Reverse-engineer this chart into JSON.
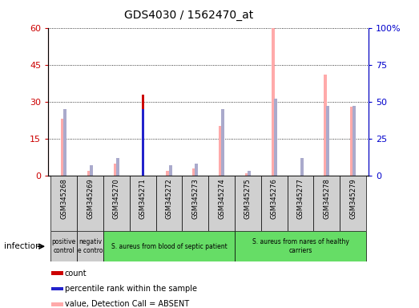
{
  "title": "GDS4030 / 1562470_at",
  "samples": [
    "GSM345268",
    "GSM345269",
    "GSM345270",
    "GSM345271",
    "GSM345272",
    "GSM345273",
    "GSM345274",
    "GSM345275",
    "GSM345276",
    "GSM345277",
    "GSM345278",
    "GSM345279"
  ],
  "count": [
    0,
    0,
    0,
    33,
    0,
    0,
    0,
    0,
    0,
    0,
    0,
    0
  ],
  "percentile_rank": [
    0,
    0,
    0,
    27,
    0,
    0,
    0,
    0,
    0,
    0,
    0,
    0
  ],
  "value_absent": [
    23,
    2,
    5,
    0,
    2,
    3,
    20,
    1,
    60,
    0,
    41,
    28
  ],
  "rank_absent_pct": [
    45,
    7,
    12,
    0,
    7,
    8,
    45,
    3,
    52,
    12,
    47,
    47
  ],
  "ylim_left": [
    0,
    60
  ],
  "ylim_right": [
    0,
    100
  ],
  "yticks_left": [
    0,
    15,
    30,
    45,
    60
  ],
  "yticks_right": [
    0,
    25,
    50,
    75,
    100
  ],
  "yticklabels_left": [
    "0",
    "15",
    "30",
    "45",
    "60"
  ],
  "yticklabels_right": [
    "0",
    "25",
    "50",
    "75",
    "100%"
  ],
  "left_tick_color": "#cc0000",
  "right_tick_color": "#0000cc",
  "groups": [
    {
      "label": "positive\ncontrol",
      "start": 0,
      "end": 1,
      "color": "#cccccc"
    },
    {
      "label": "negativ\ne contro",
      "start": 1,
      "end": 2,
      "color": "#cccccc"
    },
    {
      "label": "S. aureus from blood of septic patient",
      "start": 2,
      "end": 7,
      "color": "#66dd66"
    },
    {
      "label": "S. aureus from nares of healthy\ncarriers",
      "start": 7,
      "end": 12,
      "color": "#66dd66"
    }
  ],
  "infection_label": "infection",
  "count_color": "#cc0000",
  "percentile_color": "#2222cc",
  "value_absent_color": "#ffaaaa",
  "rank_absent_color": "#aaaacc",
  "figure_bg": "#ffffff"
}
